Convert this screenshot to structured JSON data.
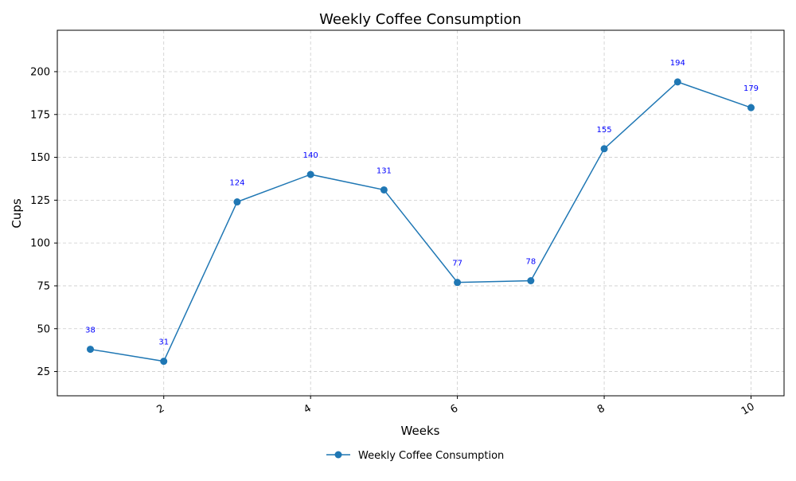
{
  "chart_data": {
    "type": "line",
    "title": "Weekly Coffee Consumption",
    "xlabel": "Weeks",
    "ylabel": "Cups",
    "xlim": [
      0.55,
      10.45
    ],
    "ylim": [
      10.85,
      224.15
    ],
    "x_ticks": [
      2,
      4,
      6,
      8,
      10
    ],
    "x_tick_rotation_deg": -30,
    "y_ticks": [
      25,
      50,
      75,
      100,
      125,
      150,
      175,
      200
    ],
    "grid": true,
    "grid_style": "dashed",
    "legend_position": "bottom-center",
    "series": [
      {
        "name": "Weekly Coffee Consumption",
        "color": "#1f77b4",
        "marker": "circle",
        "x": [
          1,
          2,
          3,
          4,
          5,
          6,
          7,
          8,
          9,
          10
        ],
        "values": [
          38,
          31,
          124,
          140,
          131,
          77,
          78,
          155,
          194,
          179
        ]
      }
    ],
    "data_label_color": "#0000ff"
  }
}
